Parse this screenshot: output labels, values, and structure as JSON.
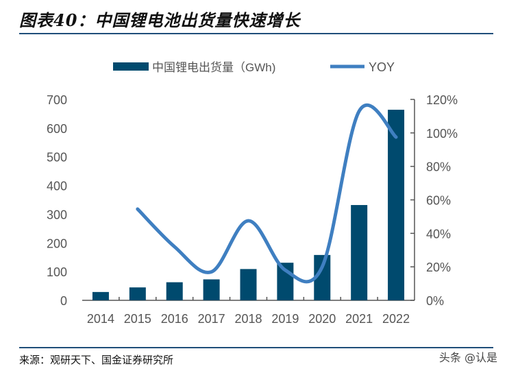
{
  "title": "图表40：中国锂电池出货量快速增长",
  "source": "来源：观研天下、国金证券研究所",
  "watermark": "头条 @认是",
  "colors": {
    "bar": "#004a6e",
    "line": "#3f7fc1",
    "rule": "#1f4e79"
  },
  "chart_data": {
    "type": "bar+line",
    "categories": [
      "2014",
      "2015",
      "2016",
      "2017",
      "2018",
      "2019",
      "2020",
      "2021",
      "2022"
    ],
    "series": [
      {
        "name": "中国锂电出货量（GWh)",
        "type": "bar",
        "axis": "left",
        "values": [
          29,
          45,
          63,
          73,
          109,
          131,
          158,
          332,
          664
        ]
      },
      {
        "name": "YOY",
        "type": "line",
        "axis": "right",
        "smooth": true,
        "values": [
          null,
          54.5,
          32,
          17,
          47.5,
          18,
          20,
          113,
          97.5
        ]
      }
    ],
    "left_axis": {
      "range": [
        0,
        700
      ],
      "ticks": [
        "0",
        "100",
        "200",
        "300",
        "400",
        "500",
        "600",
        "700"
      ]
    },
    "right_axis": {
      "range": [
        0,
        120
      ],
      "ticks": [
        "0%",
        "20%",
        "40%",
        "60%",
        "80%",
        "100%",
        "120%"
      ]
    },
    "grid": false,
    "legend": "top"
  }
}
